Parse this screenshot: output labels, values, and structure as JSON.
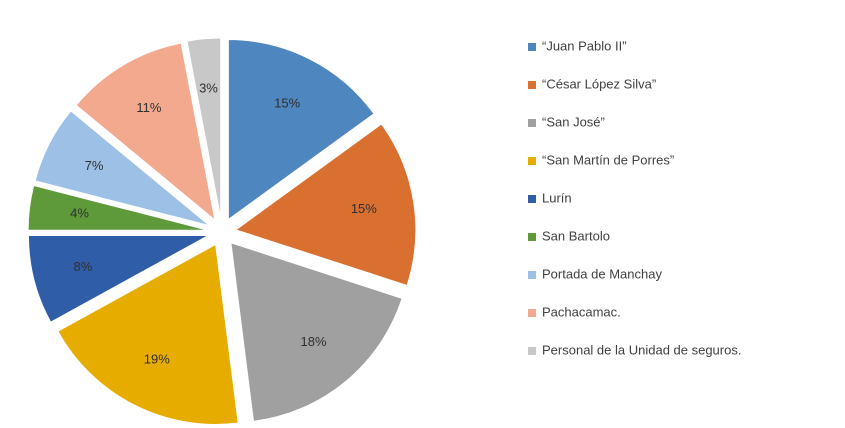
{
  "chart_data": {
    "type": "pie",
    "categories": [
      "“Juan Pablo II”",
      "“César López Silva”",
      "“San José”",
      "“San Martín de Porres”",
      "Lurín",
      "San Bartolo",
      "Portada de Manchay",
      "Pachacamac.",
      "Personal de la Unidad de seguros."
    ],
    "values": [
      15,
      15,
      18,
      19,
      8,
      4,
      7,
      11,
      3
    ],
    "value_labels": [
      "15%",
      "15%",
      "18%",
      "19%",
      "8%",
      "4%",
      "7%",
      "11%",
      "3%"
    ],
    "colors": [
      "#4e86c0",
      "#d97030",
      "#a0a0a0",
      "#e6ad00",
      "#2f5da8",
      "#5e9a3a",
      "#9dc0e6",
      "#f2a98e",
      "#c8c8c8"
    ],
    "legend": "right"
  }
}
